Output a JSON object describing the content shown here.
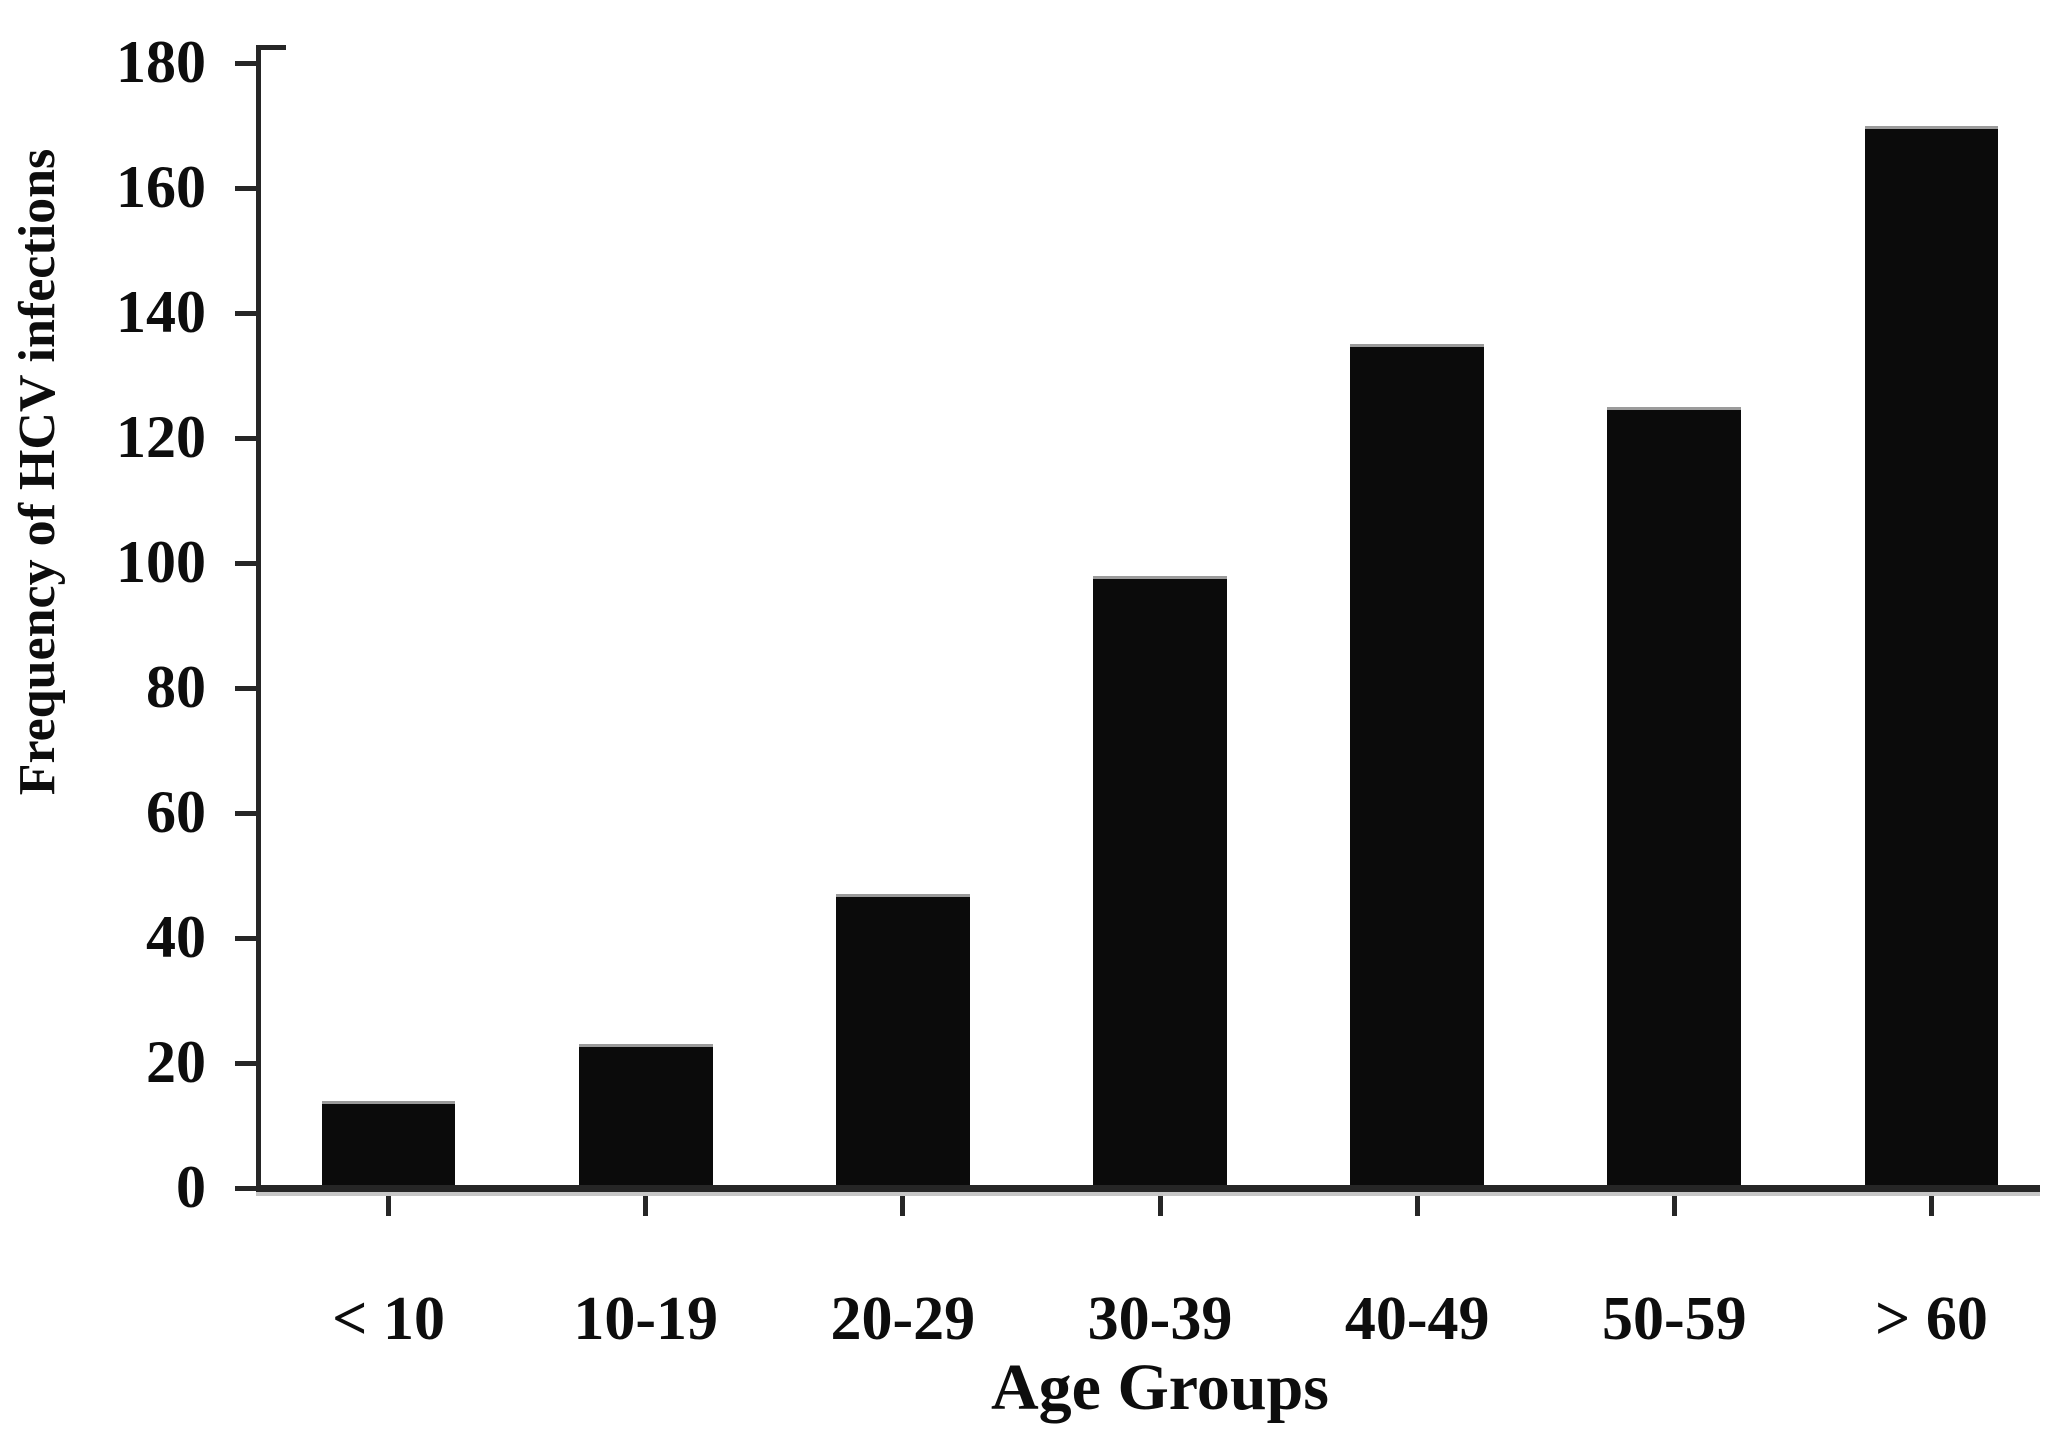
{
  "figure": {
    "background_color": "#ffffff",
    "bar_color": "#0b0b0b",
    "bar_top_edge_color": "#9b9b9b",
    "axis_color": "#262626",
    "text_color": "#0d0d0d"
  },
  "chart_data": {
    "type": "bar",
    "title": "",
    "xlabel": "Age Groups",
    "ylabel": "Frequency of HCV infections",
    "categories": [
      "< 10",
      "10-19",
      "20-29",
      "30-39",
      "40-49",
      "50-59",
      "> 60"
    ],
    "values": [
      14,
      23,
      47,
      98,
      135,
      125,
      170
    ],
    "ylim": [
      0,
      180
    ],
    "ytick_interval": 20,
    "ytick_labels": [
      "0",
      "20",
      "40",
      "60",
      "80",
      "100",
      "120",
      "140",
      "160",
      "180"
    ],
    "grid": false,
    "legend": "none",
    "orientation": "vertical",
    "bar_width_fraction": 0.52
  }
}
